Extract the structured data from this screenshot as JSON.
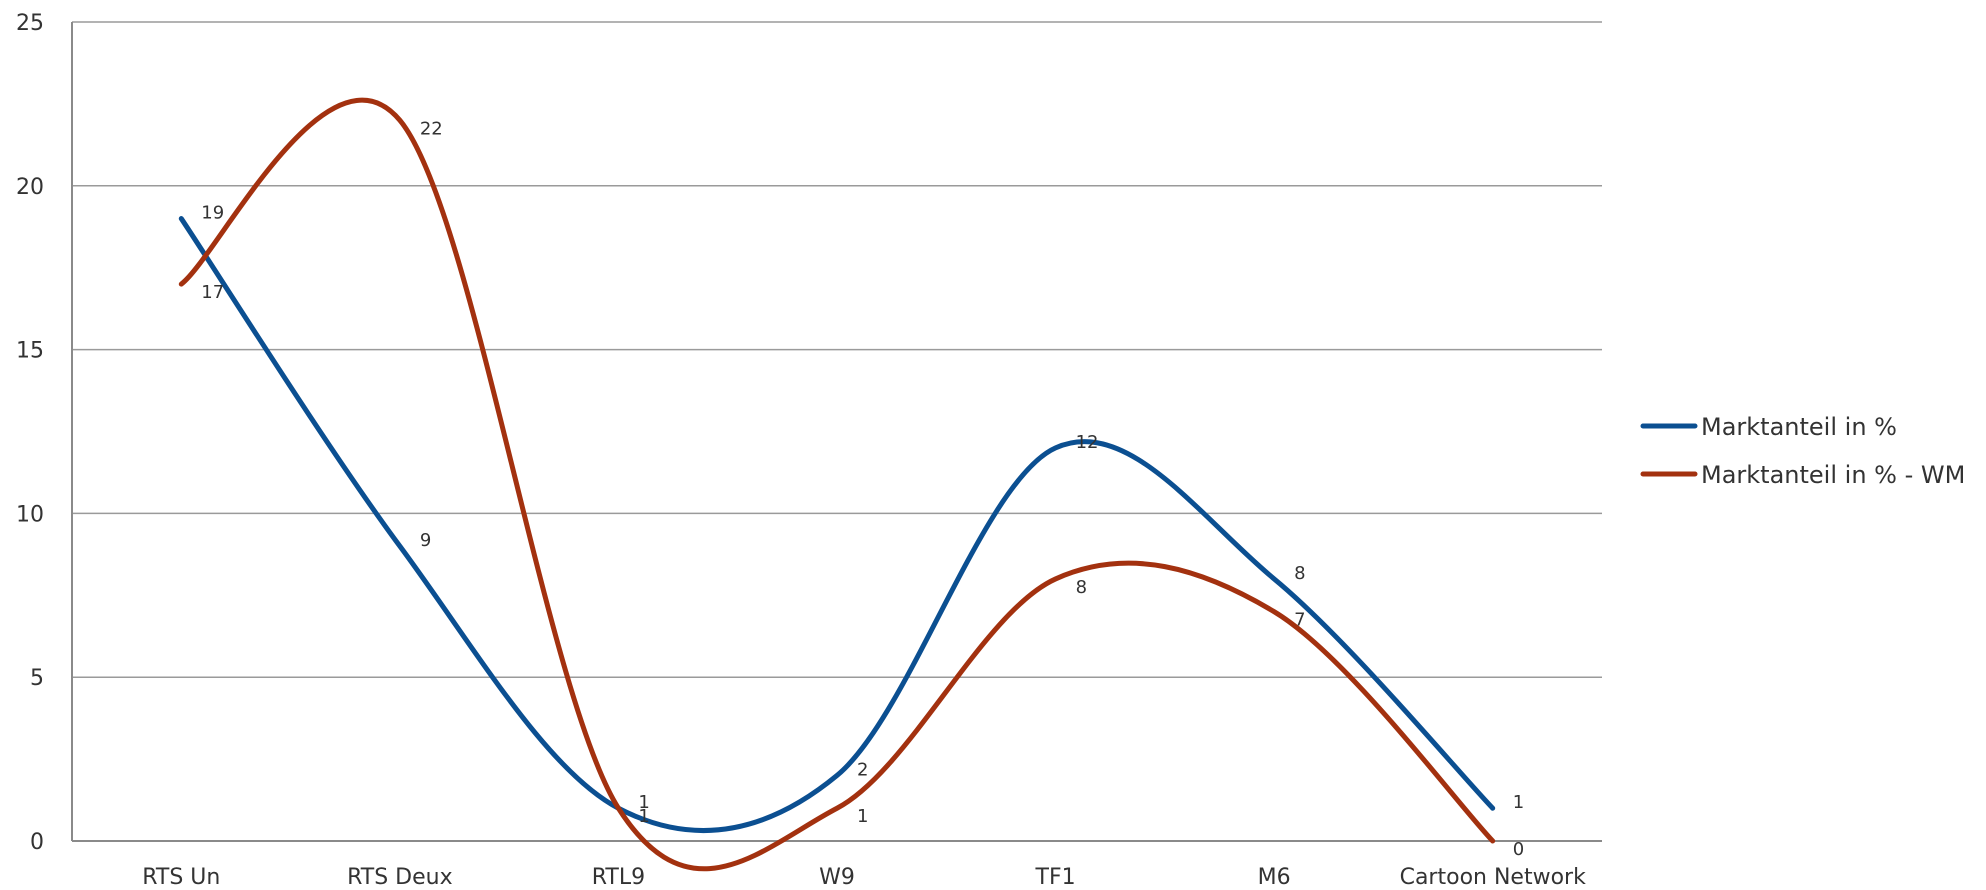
{
  "chart_data": {
    "type": "line",
    "smooth": true,
    "categories": [
      "RTS Un",
      "RTS Deux",
      "RTL9",
      "W9",
      "TF1",
      "M6",
      "Cartoon Network"
    ],
    "ylim": [
      0,
      25
    ],
    "yticks": [
      0,
      5,
      10,
      15,
      20,
      25
    ],
    "grid": true,
    "legend_position": "right",
    "series": [
      {
        "name": "Marktanteil in %",
        "color": "#0b4f91",
        "values": [
          19,
          9,
          1,
          2,
          12,
          8,
          1
        ],
        "label_text": [
          "19",
          "9",
          "1",
          "2",
          "12",
          "8",
          "1"
        ]
      },
      {
        "name": "Marktanteil in % - WM",
        "color": "#a3310f",
        "values": [
          17,
          22,
          1,
          1,
          8,
          7,
          0
        ],
        "label_text": [
          "17",
          "22",
          "1",
          "1",
          "8",
          "7",
          "0"
        ]
      }
    ]
  }
}
